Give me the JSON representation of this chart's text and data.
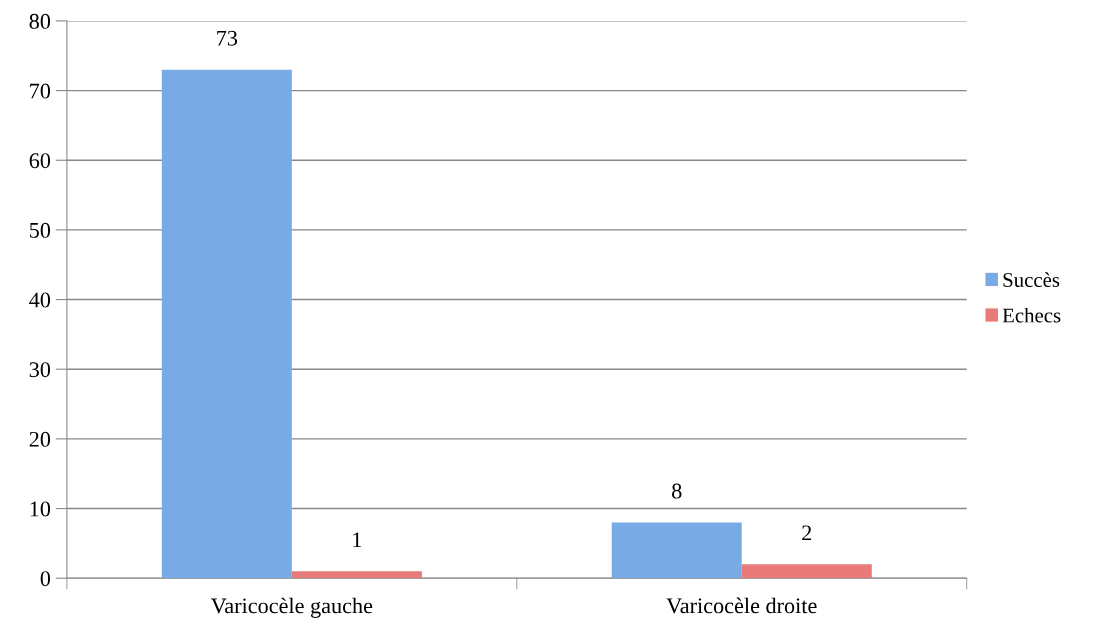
{
  "chart_data": {
    "type": "bar",
    "categories": [
      "Varicocèle gauche",
      "Varicocèle droite"
    ],
    "series": [
      {
        "name": "Succès",
        "color": "#78aae6",
        "values": [
          73,
          8
        ]
      },
      {
        "name": "Echecs",
        "color": "#e87a7a",
        "values": [
          1,
          2
        ]
      }
    ],
    "ylim": [
      0,
      80
    ],
    "yticks": [
      0,
      10,
      20,
      30,
      40,
      50,
      60,
      70,
      80
    ],
    "grid": "y",
    "legend": "right",
    "data_labels": true
  }
}
